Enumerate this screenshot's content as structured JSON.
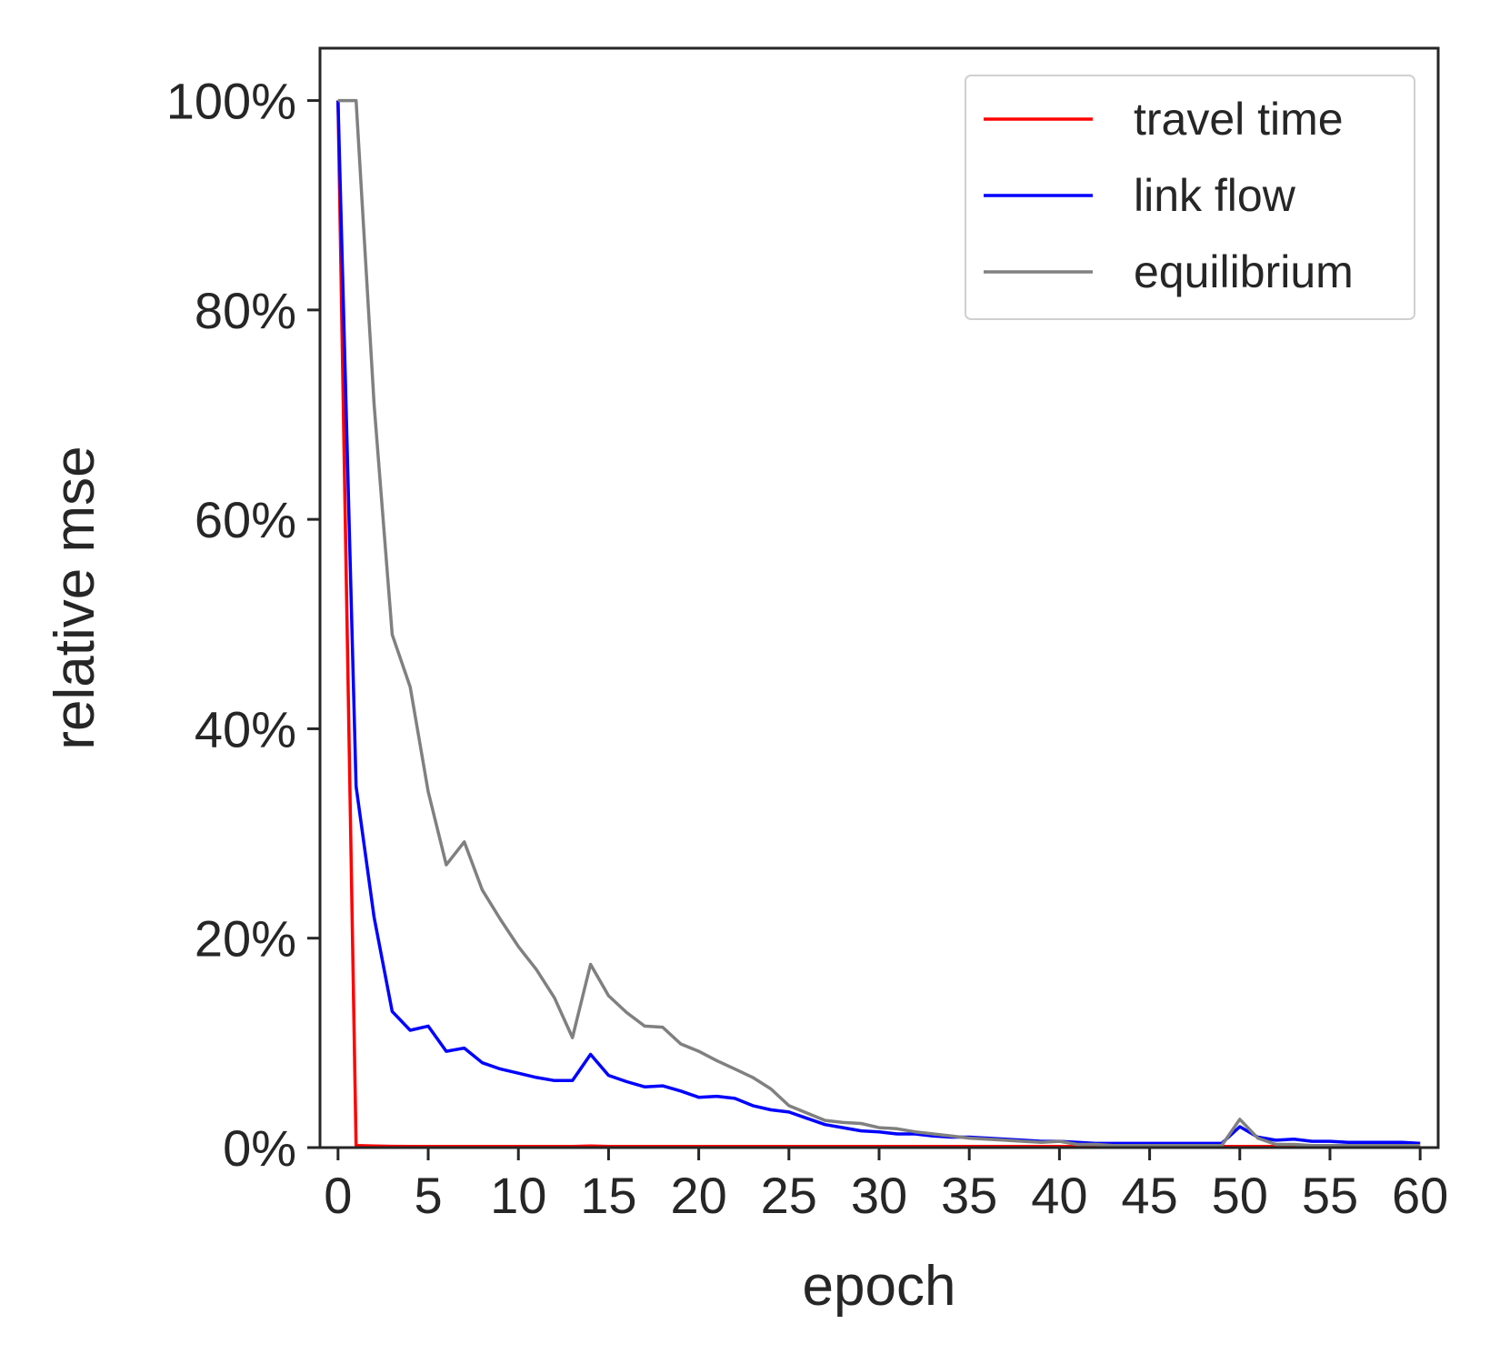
{
  "chart_data": {
    "type": "line",
    "title": "",
    "xlabel": "epoch",
    "ylabel": "relative mse",
    "xlim": [
      -1,
      61
    ],
    "ylim": [
      0,
      105
    ],
    "xticks": [
      0,
      5,
      10,
      15,
      20,
      25,
      30,
      35,
      40,
      45,
      50,
      55,
      60
    ],
    "xtick_labels": [
      "0",
      "5",
      "10",
      "15",
      "20",
      "25",
      "30",
      "35",
      "40",
      "45",
      "50",
      "55",
      "60"
    ],
    "yticks": [
      0,
      20,
      40,
      60,
      80,
      100
    ],
    "ytick_labels": [
      "0%",
      "20%",
      "40%",
      "60%",
      "80%",
      "100%"
    ],
    "grid": false,
    "legend_position": "top-right",
    "x": [
      0,
      1,
      2,
      3,
      4,
      5,
      6,
      7,
      8,
      9,
      10,
      11,
      12,
      13,
      14,
      15,
      16,
      17,
      18,
      19,
      20,
      21,
      22,
      23,
      24,
      25,
      26,
      27,
      28,
      29,
      30,
      31,
      32,
      33,
      34,
      35,
      36,
      37,
      38,
      39,
      40,
      41,
      42,
      43,
      44,
      45,
      46,
      47,
      48,
      49,
      50,
      51,
      52,
      53,
      54,
      55,
      56,
      57,
      58,
      59,
      60
    ],
    "series": [
      {
        "name": "travel time",
        "color": "#ff0000",
        "values": [
          100,
          0.2,
          0.15,
          0.12,
          0.1,
          0.1,
          0.1,
          0.1,
          0.1,
          0.1,
          0.1,
          0.1,
          0.1,
          0.1,
          0.15,
          0.1,
          0.1,
          0.1,
          0.1,
          0.1,
          0.1,
          0.1,
          0.1,
          0.1,
          0.1,
          0.1,
          0.1,
          0.1,
          0.1,
          0.1,
          0.1,
          0.1,
          0.1,
          0.1,
          0.1,
          0.1,
          0.1,
          0.1,
          0.1,
          0.1,
          0.1,
          0.1,
          0.1,
          0.1,
          0.1,
          0.1,
          0.1,
          0.1,
          0.1,
          0.1,
          0.1,
          0.1,
          0.1,
          0.1,
          0.1,
          0.1,
          0.1,
          0.1,
          0.1,
          0.1,
          0.1
        ]
      },
      {
        "name": "link flow",
        "color": "#0000ff",
        "values": [
          100,
          34.5,
          22,
          13,
          11.2,
          11.6,
          9.2,
          9.5,
          8.1,
          7.5,
          7.1,
          6.7,
          6.4,
          6.4,
          8.9,
          6.9,
          6.3,
          5.8,
          5.9,
          5.4,
          4.8,
          4.9,
          4.7,
          4.0,
          3.6,
          3.4,
          2.8,
          2.2,
          1.9,
          1.6,
          1.5,
          1.3,
          1.3,
          1.1,
          1.0,
          1.0,
          0.9,
          0.8,
          0.7,
          0.6,
          0.6,
          0.5,
          0.4,
          0.4,
          0.4,
          0.4,
          0.4,
          0.4,
          0.4,
          0.4,
          2.0,
          1.0,
          0.7,
          0.8,
          0.6,
          0.6,
          0.5,
          0.5,
          0.5,
          0.5,
          0.4
        ]
      },
      {
        "name": "equilibrium",
        "color": "#808080",
        "values": [
          100,
          100,
          71,
          49,
          44,
          34,
          27,
          29.2,
          24.6,
          21.8,
          19.2,
          17,
          14.3,
          10.5,
          17.5,
          14.5,
          12.9,
          11.6,
          11.5,
          9.9,
          9.2,
          8.3,
          7.5,
          6.7,
          5.6,
          4.0,
          3.3,
          2.6,
          2.4,
          2.3,
          1.9,
          1.8,
          1.5,
          1.3,
          1.1,
          0.9,
          0.8,
          0.7,
          0.6,
          0.5,
          0.6,
          0.3,
          0.3,
          0.2,
          0.2,
          0.2,
          0.2,
          0.2,
          0.2,
          0.2,
          2.7,
          0.9,
          0.3,
          0.3,
          0.2,
          0.2,
          0.2,
          0.2,
          0.2,
          0.2,
          0.2
        ]
      }
    ]
  }
}
